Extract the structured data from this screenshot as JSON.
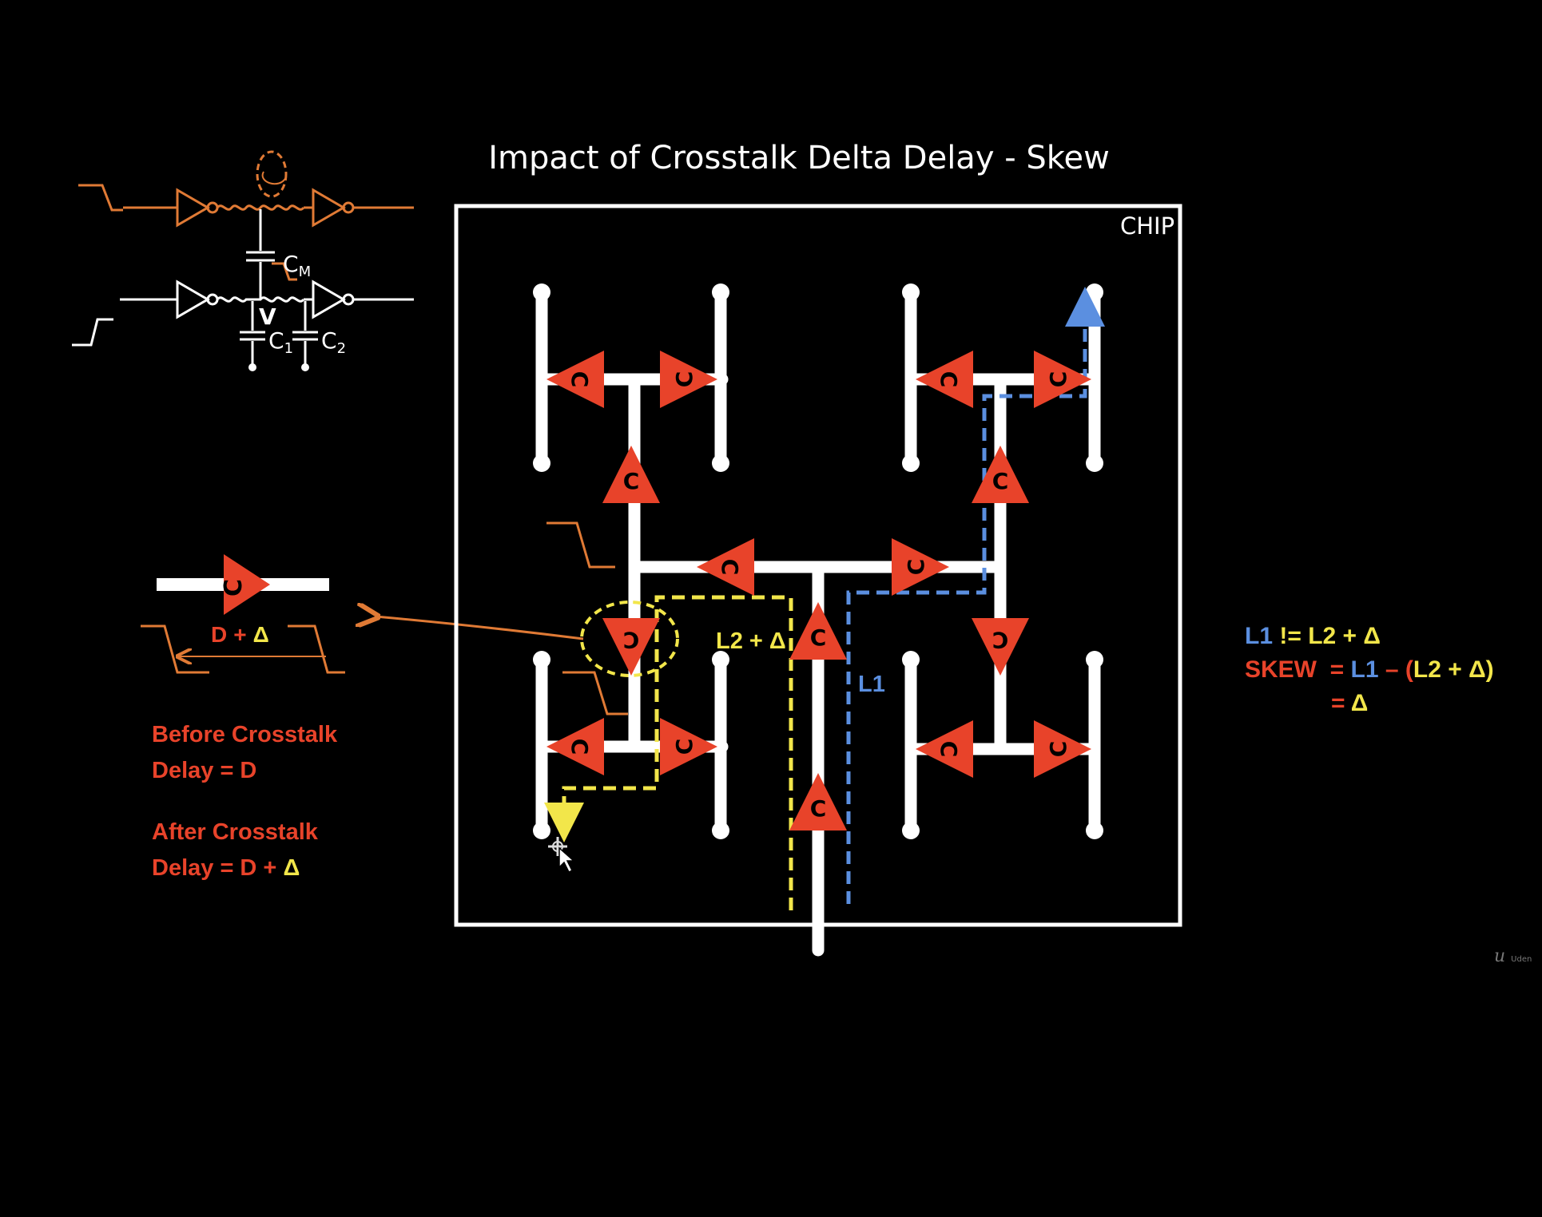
{
  "title": "Impact of Crosstalk Delta Delay - Skew",
  "chip_label": "CHIP",
  "buffer_letter": "C",
  "coupling_labels": {
    "cm": "C",
    "cm_sub": "M",
    "v": "V",
    "c1": "C",
    "c1_sub": "1",
    "c2": "C",
    "c2_sub": "2"
  },
  "delay_label": {
    "d": "D",
    "plus": "+",
    "delta": "Δ"
  },
  "notes": {
    "before_line1": "Before Crosstalk",
    "before_line2": "Delay = D",
    "after_line1": "After Crosstalk",
    "after_line2_prefix": "Delay = D + ",
    "after_delta": "Δ"
  },
  "path_labels": {
    "l2": "L2 + ",
    "l2_delta": "Δ",
    "l1": "L1"
  },
  "equations": {
    "line1_l1": "L1",
    "line1_op": " != ",
    "line1_l2": "L2 + ",
    "line1_delta": "Δ",
    "line2_skew": "SKEW  = ",
    "line2_l1": "L1",
    "line2_minus": " – (",
    "line2_l2": "L2 + ",
    "line2_delta": "Δ",
    "line2_close": ")",
    "line3_eq": "= ",
    "line3_delta": "Δ"
  },
  "watermark": {
    "logo": "u",
    "text": "Uden"
  },
  "colors": {
    "background": "#000000",
    "wire": "#ffffff",
    "buffer": "#e8432a",
    "aggressor": "#e07a35",
    "path_l2": "#f2e64a",
    "path_l1": "#5b8fe0"
  }
}
